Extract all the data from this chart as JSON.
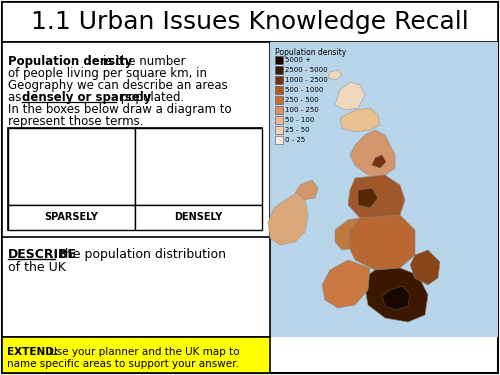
{
  "title": "1.1 Urban Issues Knowledge Recall",
  "title_fontsize": 18,
  "bg_color": "#ffffff",
  "border_color": "#000000",
  "label_sparsely": "SPARSELY",
  "label_densely": "DENSELY",
  "describe_bold": "DESCRIBE",
  "describe_rest": " the population distribution of the UK",
  "extend_bold": "EXTEND:",
  "extend_rest": " Use your planner and the UK map to name specific areas to support your answer.",
  "extend_bg": "#ffff00",
  "legend_title": "Population density",
  "legend_labels": [
    "5000 +",
    "2500 - 5000",
    "1000 - 2500",
    "500 - 1000",
    "250 - 500",
    "100 - 250",
    "50 - 100",
    "25 - 50",
    "0 - 25"
  ],
  "legend_colors": [
    "#1a0800",
    "#3d1800",
    "#7a3010",
    "#b05820",
    "#c87030",
    "#d99060",
    "#e8b890",
    "#f0d0b0",
    "#f8ecd8"
  ],
  "map_bg": "#b8d4e8"
}
